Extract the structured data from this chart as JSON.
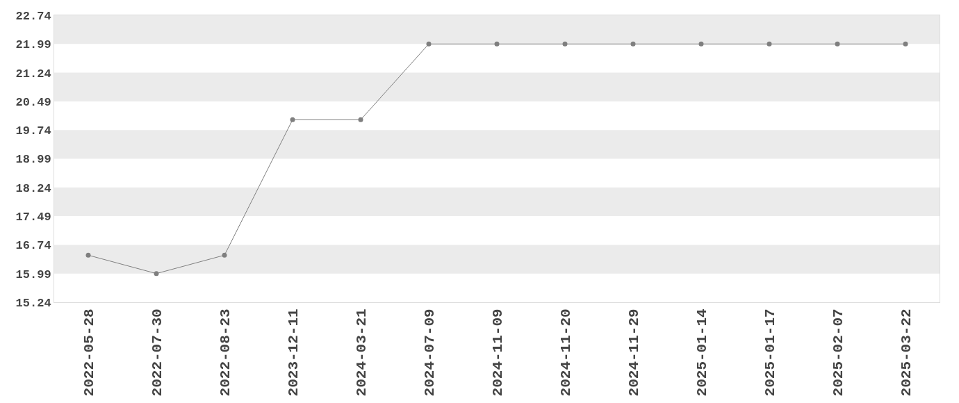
{
  "chart_data": {
    "type": "line",
    "categories": [
      "2022-05-28",
      "2022-07-30",
      "2022-08-23",
      "2023-12-11",
      "2024-03-21",
      "2024-07-09",
      "2024-11-09",
      "2024-11-20",
      "2024-11-29",
      "2025-01-14",
      "2025-01-17",
      "2025-02-07",
      "2025-03-22"
    ],
    "series": [
      {
        "color": "#7f7f7f",
        "values": [
          16.47,
          15.99,
          16.47,
          20.01,
          20.01,
          21.99,
          21.99,
          21.99,
          21.99,
          21.99,
          21.99,
          21.99,
          21.99
        ]
      }
    ],
    "ylim": [
      15.24,
      22.74
    ],
    "yticks": [
      15.24,
      15.99,
      16.74,
      17.49,
      18.24,
      18.99,
      19.74,
      20.49,
      21.24,
      21.99,
      22.74
    ],
    "bands": [
      {
        "axis": "y",
        "from": 15.99,
        "to": 16.74,
        "color": "#ebebeb"
      },
      {
        "axis": "y",
        "from": 17.49,
        "to": 18.24,
        "color": "#ebebeb"
      },
      {
        "axis": "y",
        "from": 18.99,
        "to": 19.74,
        "color": "#ebebeb"
      },
      {
        "axis": "y",
        "from": 20.49,
        "to": 21.24,
        "color": "#ebebeb"
      },
      {
        "axis": "y",
        "from": 21.99,
        "to": 22.74,
        "color": "#ebebeb"
      }
    ],
    "marker": "circle",
    "line_style": "solid"
  }
}
